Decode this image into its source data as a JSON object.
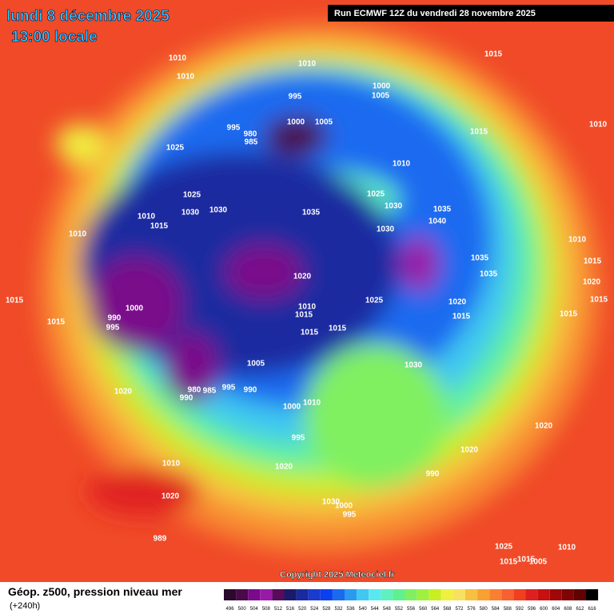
{
  "header": {
    "date": "lundi 8 décembre 2025",
    "time": "13:00 locale",
    "run": "Run ECMWF 12Z du vendredi 28 novembre 2025"
  },
  "copyright": "Copyright 2025 Meteociel.fr",
  "footer": {
    "title": "Géop. z500, pression niveau mer",
    "lead": "(+240h)"
  },
  "legend": {
    "labels": [
      496,
      500,
      504,
      508,
      512,
      516,
      520,
      524,
      528,
      532,
      536,
      540,
      544,
      548,
      552,
      556,
      560,
      564,
      568,
      572,
      576,
      580,
      584,
      588,
      592,
      596,
      600,
      604,
      608,
      612,
      616
    ],
    "colors": [
      "#2b0a2b",
      "#4a0a4a",
      "#7a0a8a",
      "#9a1aa8",
      "#5a0a5a",
      "#1a1a6a",
      "#1a2aa0",
      "#1a3ad0",
      "#0a40f0",
      "#1a6af0",
      "#2a9af0",
      "#40c8f0",
      "#5ae8f0",
      "#60f0c0",
      "#60f090",
      "#80f060",
      "#a0f040",
      "#c8f020",
      "#f0f040",
      "#f8e060",
      "#f8c040",
      "#f8a030",
      "#f88030",
      "#f86030",
      "#f04020",
      "#e02020",
      "#c81010",
      "#a00808",
      "#800404",
      "#600202",
      "#000000"
    ]
  },
  "isobar_labels": [
    1010,
    1010,
    1010,
    1015,
    1000,
    1005,
    995,
    995,
    980,
    985,
    1000,
    1005,
    1015,
    1010,
    1025,
    1010,
    1025,
    1030,
    1030,
    1035,
    1025,
    1030,
    1035,
    1040,
    1030,
    1010,
    1015,
    1010,
    1010,
    1015,
    1035,
    1035,
    1020,
    1020,
    1015,
    1015,
    1000,
    990,
    995,
    1025,
    1020,
    1015,
    1015,
    1015,
    1015,
    1015,
    1015,
    1005,
    1030,
    980,
    985,
    990,
    995,
    990,
    1020,
    1010,
    1000,
    995,
    1020,
    1020,
    1020,
    990,
    1010,
    1020,
    1030,
    1000,
    995,
    989,
    1025,
    1010,
    1015,
    1005,
    1015,
    1010
  ]
}
